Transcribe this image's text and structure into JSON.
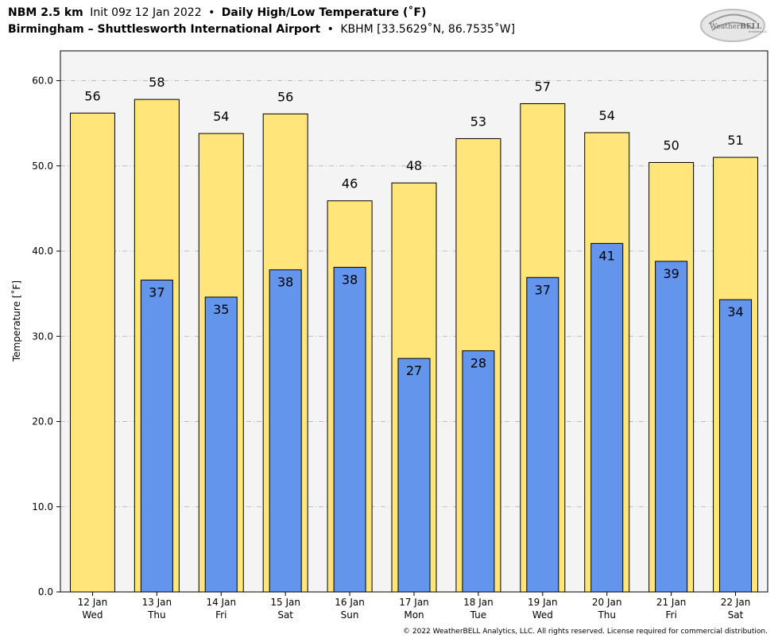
{
  "header": {
    "line1_a": "NBM 2.5 km",
    "line1_b": "Init 09z 12 Jan 2022",
    "line1_sep": "•",
    "line1_c": "Daily High/Low Temperature (˚F)",
    "line2_a": "Birmingham – Shuttlesworth International Airport",
    "line2_sep": "•",
    "line2_b": "KBHM [33.5629˚N, 86.7535˚W]"
  },
  "logo": {
    "text_a": "Weather",
    "text_b": "BELL",
    "subtext": "Analytics LLC"
  },
  "footer": {
    "copyright": "© 2022 WeatherBELL Analytics, LLC. All rights reserved. License required for commercial distribution."
  },
  "colors": {
    "high": "#FFE57A",
    "low": "#6495ED",
    "plot_bg": "#F4F4F4",
    "grid": "#BBBBBB"
  },
  "chart_data": {
    "type": "bar",
    "ylabel": "Temperature [˚F]",
    "ylim": [
      0,
      63.5
    ],
    "yticks": [
      "0.0",
      "10.0",
      "20.0",
      "30.0",
      "40.0",
      "50.0",
      "60.0"
    ],
    "grid": true,
    "categories": [
      {
        "date": "12 Jan",
        "day": "Wed"
      },
      {
        "date": "13 Jan",
        "day": "Thu"
      },
      {
        "date": "14 Jan",
        "day": "Fri"
      },
      {
        "date": "15 Jan",
        "day": "Sat"
      },
      {
        "date": "16 Jan",
        "day": "Sun"
      },
      {
        "date": "17 Jan",
        "day": "Mon"
      },
      {
        "date": "18 Jan",
        "day": "Tue"
      },
      {
        "date": "19 Jan",
        "day": "Wed"
      },
      {
        "date": "20 Jan",
        "day": "Thu"
      },
      {
        "date": "21 Jan",
        "day": "Fri"
      },
      {
        "date": "22 Jan",
        "day": "Sat"
      }
    ],
    "series": [
      {
        "key": "high",
        "values": [
          56.2,
          57.8,
          53.8,
          56.1,
          45.9,
          48.0,
          53.2,
          57.3,
          53.9,
          50.4,
          51.0
        ],
        "labels": [
          "56",
          "58",
          "54",
          "56",
          "46",
          "48",
          "53",
          "57",
          "54",
          "50",
          "51"
        ]
      },
      {
        "key": "low",
        "values": [
          null,
          36.6,
          34.6,
          37.8,
          38.1,
          27.4,
          28.3,
          36.9,
          40.9,
          38.8,
          34.3
        ],
        "labels": [
          "",
          "37",
          "35",
          "38",
          "38",
          "27",
          "28",
          "37",
          "41",
          "39",
          "34"
        ]
      }
    ]
  }
}
